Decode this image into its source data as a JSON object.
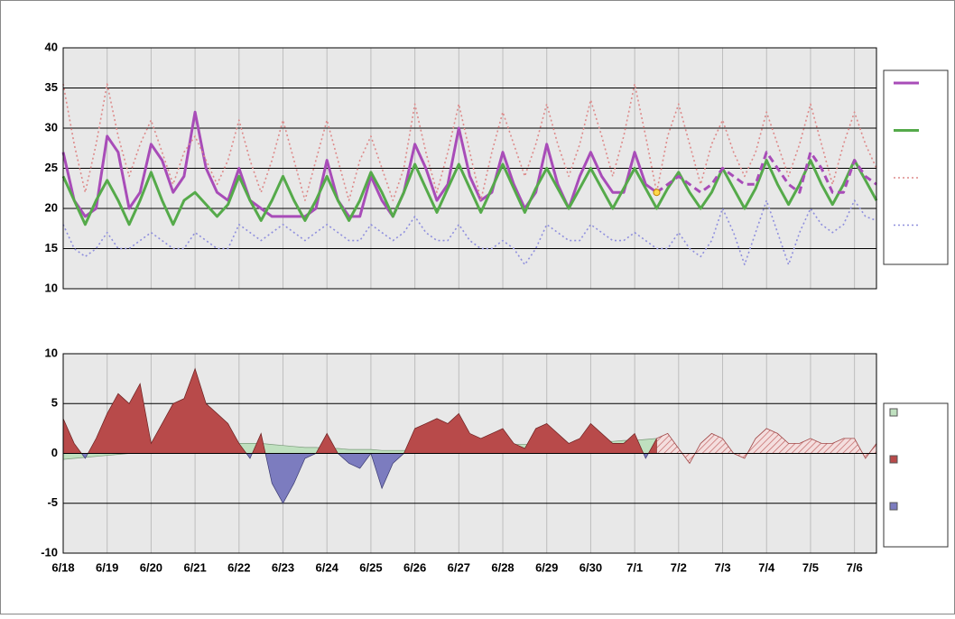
{
  "chart_data": [
    {
      "type": "line",
      "ylim": [
        10,
        40
      ],
      "yticks": [
        10,
        15,
        20,
        25,
        30,
        35,
        40
      ],
      "grid": true,
      "highlight": {
        "category_index": 54,
        "value": 22,
        "color": "#ffd84a"
      },
      "series": [
        {
          "color": "#a84cb8",
          "dash": "solid",
          "width": 3,
          "values": [
            27,
            21,
            19,
            20,
            29,
            27,
            20,
            22,
            28,
            26,
            22,
            24,
            32,
            25,
            22,
            21,
            25,
            21,
            20,
            19,
            19,
            19,
            19,
            20,
            26,
            21,
            19,
            19,
            24,
            21,
            19,
            22,
            28,
            25,
            21,
            23,
            30,
            24,
            21,
            22,
            27,
            23,
            20,
            22,
            28,
            23,
            20,
            24,
            27,
            24,
            22,
            22,
            27,
            23,
            22,
            null,
            null,
            null,
            null,
            null,
            null,
            null,
            null,
            null,
            null,
            null,
            null,
            null,
            null,
            null,
            null,
            null,
            null,
            null,
            null
          ]
        },
        {
          "color": "#55aa4a",
          "dash": "solid",
          "width": 3,
          "values": [
            24,
            21,
            18,
            21,
            23.5,
            21,
            18,
            21,
            24.5,
            21,
            18,
            21,
            22,
            20.5,
            19,
            20.5,
            24,
            21,
            18.5,
            21,
            24,
            21,
            18.5,
            21,
            24,
            21,
            18.5,
            21,
            24.5,
            22,
            19,
            22,
            25.5,
            22.5,
            19.5,
            22.5,
            25.5,
            22.5,
            19.5,
            22.5,
            25.5,
            22.5,
            19.5,
            22.5,
            25,
            22.5,
            20,
            22.5,
            25,
            22.5,
            20,
            22.5,
            25,
            22.5,
            20,
            22.5,
            24.5,
            22,
            20,
            22,
            25,
            22.5,
            20,
            22.5,
            26,
            23,
            20.5,
            23,
            26,
            23,
            20.5,
            23,
            26,
            23.5,
            21
          ]
        },
        {
          "color": "#dd8a8a",
          "dash": "dotted",
          "width": 1.6,
          "values": [
            35.5,
            28,
            22,
            28,
            35.5,
            29,
            24,
            28,
            31,
            27,
            23,
            27,
            29,
            26,
            23,
            26,
            31,
            26,
            22,
            26,
            31,
            26,
            21,
            26,
            31,
            26,
            21,
            26,
            29,
            25,
            21,
            25,
            33,
            27,
            22,
            27,
            33,
            27,
            21,
            27,
            32,
            28,
            24,
            28,
            33,
            28,
            24,
            28,
            33.5,
            29,
            24,
            29,
            35.5,
            29,
            22,
            29,
            33,
            28,
            23,
            28,
            31,
            27,
            24,
            27,
            32,
            28,
            24,
            28,
            33,
            28,
            23,
            28,
            32,
            28,
            25
          ]
        },
        {
          "color": "#8f8fdd",
          "dash": "dotted",
          "width": 1.6,
          "values": [
            18,
            15,
            14,
            15,
            17,
            15,
            15,
            16,
            17,
            16,
            15,
            15,
            17,
            16,
            15,
            15,
            18,
            17,
            16,
            17,
            18,
            17,
            16,
            17,
            18,
            17,
            16,
            16,
            18,
            17,
            16,
            17,
            19,
            17,
            16,
            16,
            18,
            16,
            15,
            15,
            16,
            15,
            13,
            15,
            18,
            17,
            16,
            16,
            18,
            17,
            16,
            16,
            17,
            16,
            15,
            15,
            17,
            15,
            14,
            16,
            20,
            17,
            13,
            17,
            21,
            17,
            13,
            17,
            20,
            18,
            17,
            18,
            21,
            19,
            18.5
          ]
        },
        {
          "color": "#a84cb8",
          "dash": "dashed",
          "width": 3,
          "legend": false,
          "values": [
            null,
            null,
            null,
            null,
            null,
            null,
            null,
            null,
            null,
            null,
            null,
            null,
            null,
            null,
            null,
            null,
            null,
            null,
            null,
            null,
            null,
            null,
            null,
            null,
            null,
            null,
            null,
            null,
            null,
            null,
            null,
            null,
            null,
            null,
            null,
            null,
            null,
            null,
            null,
            null,
            null,
            null,
            null,
            null,
            null,
            null,
            null,
            null,
            null,
            null,
            null,
            null,
            null,
            null,
            22,
            23,
            24,
            23,
            22,
            23,
            25,
            24,
            23,
            23,
            27,
            25,
            23,
            22,
            27,
            25,
            22,
            22,
            26,
            24,
            23
          ]
        }
      ]
    },
    {
      "type": "area",
      "ylim": [
        -10,
        10
      ],
      "yticks": [
        -10,
        -5,
        0,
        5,
        10
      ],
      "grid": true,
      "categories": [
        "6/18",
        null,
        null,
        null,
        "6/19",
        null,
        null,
        null,
        "6/20",
        null,
        null,
        null,
        "6/21",
        null,
        null,
        null,
        "6/22",
        null,
        null,
        null,
        "6/23",
        null,
        null,
        null,
        "6/24",
        null,
        null,
        null,
        "6/25",
        null,
        null,
        null,
        "6/26",
        null,
        null,
        null,
        "6/27",
        null,
        null,
        null,
        "6/28",
        null,
        null,
        null,
        "6/29",
        null,
        null,
        null,
        "6/30",
        null,
        null,
        null,
        "7/1",
        null,
        null,
        null,
        "7/2",
        null,
        null,
        null,
        "7/3",
        null,
        null,
        null,
        "7/4",
        null,
        null,
        null,
        "7/5",
        null,
        null,
        null,
        "7/6",
        null,
        null
      ],
      "series": [
        {
          "color": "#bfe0bf",
          "values": [
            -0.6,
            -0.5,
            -0.4,
            -0.3,
            -0.2,
            -0.1,
            0,
            0.1,
            0.3,
            0.4,
            0.5,
            0.6,
            0.8,
            0.9,
            1,
            1,
            1,
            1,
            1,
            0.9,
            0.8,
            0.7,
            0.6,
            0.6,
            0.5,
            0.5,
            0.4,
            0.4,
            0.4,
            0.3,
            0.3,
            0.3,
            0.4,
            0.5,
            0.6,
            0.6,
            0.7,
            0.7,
            0.8,
            0.8,
            0.8,
            0.9,
            0.9,
            0.9,
            1,
            1,
            1,
            1.1,
            1.1,
            1.2,
            1.2,
            1.3,
            1.3,
            1.4,
            1.5,
            null,
            null,
            null,
            null,
            null,
            null,
            null,
            null,
            null,
            null,
            null,
            null,
            null,
            null,
            null,
            null,
            null,
            null,
            null,
            null
          ]
        },
        {
          "color": "#b84a4a",
          "negative_color": "#7c7cbf",
          "values": [
            3.5,
            1,
            -0.5,
            1.5,
            4,
            6,
            5,
            7,
            1,
            3,
            5,
            5.5,
            8.5,
            5,
            4,
            3,
            1,
            -0.5,
            2,
            -3,
            -5,
            -3,
            -0.5,
            0,
            2,
            0,
            -1,
            -1.5,
            0,
            -3.5,
            -1,
            0,
            2.5,
            3,
            3.5,
            3,
            4,
            2,
            1.5,
            2,
            2.5,
            1,
            0.5,
            2.5,
            3,
            2,
            1,
            1.5,
            3,
            2,
            1,
            1,
            2,
            -0.5,
            1.5,
            null,
            null,
            null,
            null,
            null,
            null,
            null,
            null,
            null,
            null,
            null,
            null,
            null,
            null,
            null,
            null,
            null,
            null,
            null,
            null
          ]
        },
        {
          "color": "#d88a8a",
          "hatch": true,
          "legend": false,
          "values": [
            null,
            null,
            null,
            null,
            null,
            null,
            null,
            null,
            null,
            null,
            null,
            null,
            null,
            null,
            null,
            null,
            null,
            null,
            null,
            null,
            null,
            null,
            null,
            null,
            null,
            null,
            null,
            null,
            null,
            null,
            null,
            null,
            null,
            null,
            null,
            null,
            null,
            null,
            null,
            null,
            null,
            null,
            null,
            null,
            null,
            null,
            null,
            null,
            null,
            null,
            null,
            null,
            null,
            null,
            1.5,
            2,
            0.5,
            -1,
            1,
            2,
            1.5,
            0,
            -0.5,
            1.5,
            2.5,
            2,
            1,
            1,
            1.5,
            1,
            1,
            1.5,
            1.5,
            -0.5,
            1
          ]
        }
      ]
    }
  ]
}
